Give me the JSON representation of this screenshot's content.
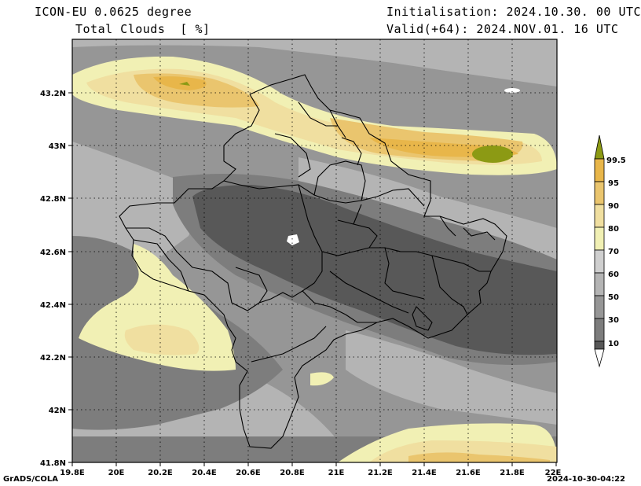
{
  "header": {
    "model": "ICON-EU 0.0625 degree",
    "variable": "Total Clouds  [ %]",
    "init": "Initialisation: 2024.10.30. 00 UTC",
    "valid": "Valid(+64): 2024.NOV.01. 16 UTC"
  },
  "axes": {
    "x_ticks": [
      "19.8E",
      "20E",
      "20.2E",
      "20.4E",
      "20.6E",
      "20.8E",
      "21E",
      "21.2E",
      "21.4E",
      "21.6E",
      "21.8E",
      "22E"
    ],
    "y_ticks": [
      "43.2N",
      "43N",
      "42.8N",
      "42.6N",
      "42.4N",
      "42.2N",
      "42N",
      "41.8N"
    ],
    "lon_range": [
      19.8,
      22.0
    ],
    "lat_range": [
      41.8,
      43.4
    ],
    "grid": "dotted"
  },
  "colorbar": {
    "labels": [
      "10",
      "30",
      "50",
      "60",
      "70",
      "80",
      "90",
      "95",
      "99.5"
    ],
    "colors": [
      "#ffffff",
      "#585858",
      "#7d7d7d",
      "#969696",
      "#b4b4b4",
      "#cfcfcf",
      "#f1f0b4",
      "#f0dfa0",
      "#eac56e",
      "#e8b64a",
      "#8c9a14"
    ]
  },
  "footer": {
    "left": "GrADS/COLA",
    "right": "2024-10-30-04:22"
  }
}
